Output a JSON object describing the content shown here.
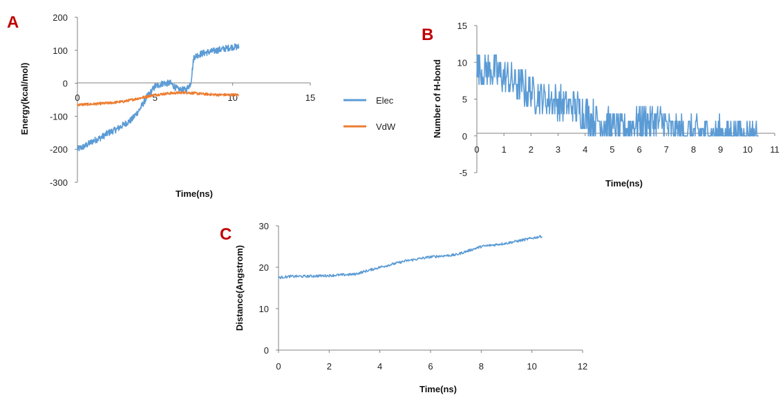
{
  "colors": {
    "elec": "#5B9BD5",
    "vdw": "#ED7D31",
    "hbond": "#5B9BD5",
    "distance": "#5B9BD5",
    "panel_letter": "#C00000",
    "axis": "#808080"
  },
  "chart_data": [
    {
      "panel": "A",
      "type": "line",
      "xlabel": "Time(ns)",
      "ylabel": "Energy(kcal/mol)",
      "xlim": [
        0,
        15
      ],
      "ylim": [
        -300,
        200
      ],
      "xticks": [
        "0",
        "5",
        "10",
        "15"
      ],
      "yticks": [
        "-300",
        "-200",
        "-100",
        "0",
        "100",
        "200"
      ],
      "legend_position": "right",
      "series": [
        {
          "name": "Elec",
          "color": "#5B9BD5",
          "noise": 10,
          "x": [
            0,
            0.5,
            1,
            1.5,
            2,
            2.5,
            3,
            3.5,
            4,
            4.5,
            5,
            5.5,
            6,
            6.5,
            7,
            7.3,
            7.5,
            8,
            8.5,
            9,
            9.5,
            10,
            10.4
          ],
          "y": [
            -200,
            -190,
            -175,
            -165,
            -150,
            -140,
            -125,
            -110,
            -80,
            -40,
            -10,
            0,
            0,
            -20,
            -20,
            0,
            80,
            90,
            95,
            100,
            105,
            110,
            110
          ]
        },
        {
          "name": "VdW",
          "color": "#ED7D31",
          "noise": 4,
          "x": [
            0,
            1,
            2,
            3,
            4,
            5,
            6,
            7,
            8,
            9,
            10,
            10.4
          ],
          "y": [
            -65,
            -63,
            -60,
            -55,
            -45,
            -35,
            -30,
            -28,
            -32,
            -35,
            -35,
            -35
          ]
        }
      ]
    },
    {
      "panel": "B",
      "type": "line",
      "xlabel": "Time(ns)",
      "ylabel": "Number of H-bond",
      "xlim": [
        0,
        11
      ],
      "ylim": [
        -5,
        15
      ],
      "xticks": [
        "0",
        "1",
        "2",
        "3",
        "4",
        "5",
        "6",
        "7",
        "8",
        "9",
        "10",
        "11"
      ],
      "yticks": [
        "-5",
        "0",
        "5",
        "10",
        "15"
      ],
      "series": [
        {
          "color": "#5B9BD5",
          "noise": 2.5,
          "x": [
            0,
            0.5,
            1,
            1.5,
            2,
            2.5,
            3,
            3.5,
            4,
            4.5,
            5,
            5.5,
            6,
            6.5,
            7,
            7.3,
            7.5,
            8,
            8.5,
            8.9,
            9,
            10,
            10.4
          ],
          "y": [
            9,
            9,
            8,
            7,
            6,
            5,
            4.5,
            4,
            3,
            2,
            1,
            1,
            2,
            2,
            1.5,
            0.5,
            0.3,
            0.3,
            0.3,
            0.2,
            0,
            0,
            0
          ]
        }
      ]
    },
    {
      "panel": "C",
      "type": "line",
      "xlabel": "Time(ns)",
      "ylabel": "Distance(Angstrom)",
      "xlim": [
        0,
        12
      ],
      "ylim": [
        0,
        30
      ],
      "xticks": [
        "0",
        "2",
        "4",
        "6",
        "8",
        "10",
        "12"
      ],
      "yticks": [
        "0",
        "10",
        "20",
        "30"
      ],
      "series": [
        {
          "color": "#5B9BD5",
          "noise": 0.3,
          "x": [
            0,
            0.5,
            1,
            2,
            3,
            4,
            5,
            6,
            7,
            8,
            9,
            10,
            10.4
          ],
          "y": [
            17.5,
            17.8,
            17.8,
            18,
            18.3,
            20,
            21.5,
            22.5,
            23,
            25,
            25.8,
            27,
            27.5
          ]
        }
      ]
    }
  ]
}
